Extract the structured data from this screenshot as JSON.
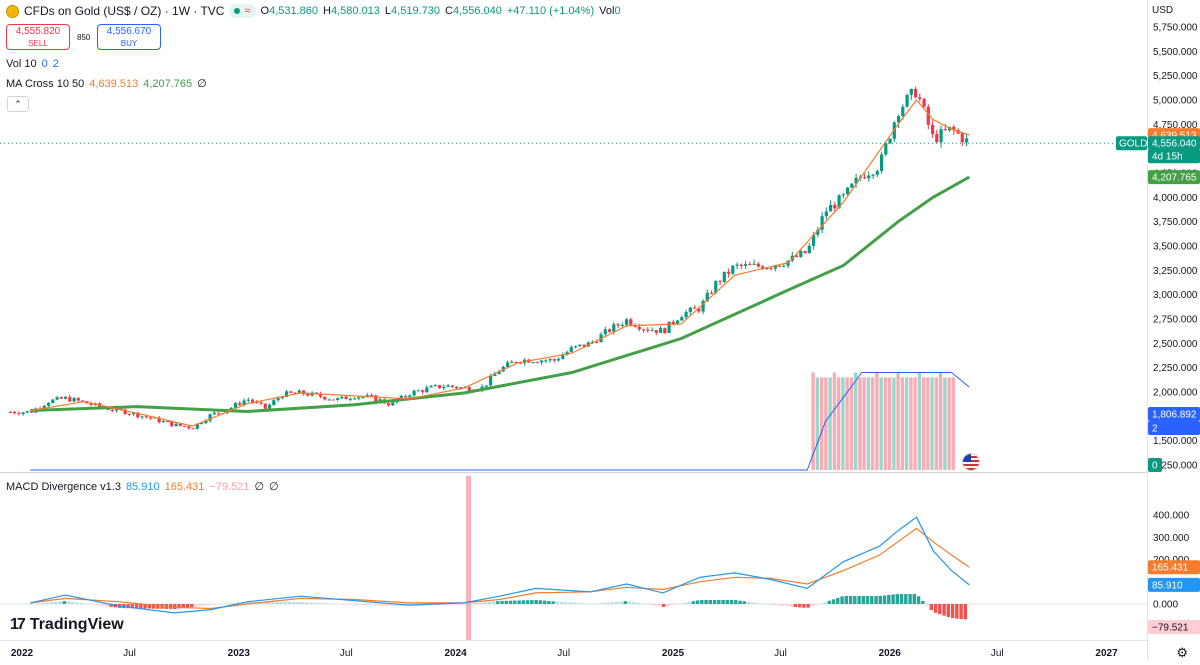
{
  "header": {
    "title": "CFDs on Gold (US$ / OZ) · 1W · TVC",
    "ohlc": {
      "o_label": "O",
      "o_value": "4,531.860",
      "h_label": "H",
      "h_value": "4,580.013",
      "l_label": "L",
      "l_value": "4,519.730",
      "c_label": "C",
      "c_value": "4,556.040",
      "change": "+47.110 (+1.04%)",
      "vol_label": "Vol",
      "vol_value": "0"
    },
    "sell": {
      "price": "4,555.820",
      "label": "SELL"
    },
    "buy": {
      "price": "4,556.670",
      "label": "BUY"
    },
    "spread": "850",
    "collapse_icon": "chevron-up-icon"
  },
  "studies": {
    "volume": {
      "label": "Vol 10",
      "v1": "0",
      "v2": "2"
    },
    "ma_cross": {
      "label": "MA Cross 10 50",
      "v1": "4,639.513",
      "v2": "4,207.765",
      "hidden": "∅"
    },
    "macd": {
      "label": "MACD Divergence v1.3",
      "v1": "85.910",
      "v2": "165.431",
      "v3": "−79.521",
      "n1": "∅",
      "n2": "∅"
    }
  },
  "currency": "USD",
  "brand": "TradingView",
  "colors": {
    "up": "#089981",
    "down": "#f23645",
    "ma_fast": "#f57c2c",
    "ma_slow": "#43a047",
    "macd": "#2196f3",
    "signal": "#f57c2c",
    "volume_line": "#2962ff"
  },
  "chart_data": [
    {
      "type": "candlestick",
      "title": "CFDs on Gold (US$ / OZ) · 1W · TVC",
      "ylim": [
        1250,
        5750
      ],
      "y_ticks": [
        "5,750.000",
        "5,500.000",
        "5,250.000",
        "5,000.000",
        "4,750.000",
        "4,250.000",
        "4,000.000",
        "3,750.000",
        "3,500.000",
        "3,250.000",
        "3,000.000",
        "2,750.000",
        "2,500.000",
        "2,250.000",
        "2,000.000",
        "1,750.000",
        "1,500.000",
        "1,250.000"
      ],
      "x_ticks": [
        "2022",
        "Jul",
        "2023",
        "Jul",
        "2024",
        "Jul",
        "2025",
        "Jul",
        "2026",
        "Jul",
        "2027"
      ],
      "x_range": [
        "2022-01-01",
        "2027-04-01"
      ],
      "last": {
        "label": "GOLD",
        "price": "4,556.040",
        "countdown": "4d 15h"
      },
      "ma_fast_last": "4,639.513",
      "ma_slow_last": "4,207.765",
      "close_series": {
        "x": [
          "2022-01",
          "2022-02",
          "2022-03",
          "2022-04",
          "2022-05",
          "2022-06",
          "2022-07",
          "2022-08",
          "2022-09",
          "2022-10",
          "2022-11",
          "2022-12",
          "2023-01",
          "2023-02",
          "2023-03",
          "2023-04",
          "2023-05",
          "2023-06",
          "2023-07",
          "2023-08",
          "2023-09",
          "2023-10",
          "2023-11",
          "2023-12",
          "2024-01",
          "2024-02",
          "2024-03",
          "2024-04",
          "2024-05",
          "2024-06",
          "2024-07",
          "2024-08",
          "2024-09",
          "2024-10",
          "2024-11",
          "2024-12",
          "2025-01",
          "2025-02",
          "2025-03",
          "2025-04",
          "2025-05",
          "2025-06",
          "2025-07",
          "2025-08",
          "2025-09",
          "2025-10",
          "2025-11",
          "2025-12",
          "2026-01",
          "2026-02",
          "2026-03",
          "2026-04",
          "2026-05"
        ],
        "y": [
          1795,
          1905,
          1935,
          1895,
          1840,
          1810,
          1765,
          1715,
          1660,
          1635,
          1765,
          1825,
          1930,
          1830,
          1975,
          1990,
          1960,
          1920,
          1960,
          1940,
          1870,
          1985,
          2035,
          2065,
          2040,
          2045,
          2230,
          2330,
          2330,
          2325,
          2445,
          2500,
          2635,
          2740,
          2655,
          2625,
          2800,
          2860,
          3120,
          3290,
          3290,
          3300,
          3350,
          3440,
          3860,
          4000,
          4230,
          4330,
          4900,
          5100,
          4600,
          4700,
          4556
        ]
      },
      "ma_fast_series": {
        "x": [
          "2022-01",
          "2022-04",
          "2022-07",
          "2022-10",
          "2023-01",
          "2023-04",
          "2023-07",
          "2023-10",
          "2024-01",
          "2024-04",
          "2024-07",
          "2024-10",
          "2025-01",
          "2025-04",
          "2025-07",
          "2025-10",
          "2026-01",
          "2026-02",
          "2026-03",
          "2026-04",
          "2026-05"
        ],
        "y": [
          1810,
          1900,
          1780,
          1650,
          1880,
          1990,
          1960,
          1930,
          2040,
          2300,
          2400,
          2680,
          2700,
          3200,
          3330,
          3950,
          4750,
          5000,
          4800,
          4700,
          4640
        ]
      },
      "ma_slow_series": {
        "x": [
          "2022-01",
          "2022-07",
          "2023-01",
          "2023-07",
          "2024-01",
          "2024-07",
          "2025-01",
          "2025-07",
          "2025-10",
          "2026-01",
          "2026-03",
          "2026-05"
        ],
        "y": [
          1810,
          1850,
          1800,
          1870,
          1990,
          2200,
          2550,
          3050,
          3300,
          3750,
          4000,
          4208
        ]
      },
      "volume_series": {
        "name": "Vol 10",
        "x": [
          "2022-01",
          "2025-08",
          "2025-09",
          "2025-11",
          "2026-01",
          "2026-03",
          "2026-04",
          "2026-05"
        ],
        "y": [
          0,
          0,
          1,
          2,
          2,
          2,
          2,
          1.7
        ]
      },
      "volume_last": "1,806.892",
      "volume_tag_2": "2",
      "volume_tag_0": "0"
    },
    {
      "type": "line",
      "title": "MACD Divergence v1.3",
      "ylim": [
        -100,
        420
      ],
      "y_ticks": [
        "400.000",
        "300.000",
        "200.000",
        "100.000",
        "0.000"
      ],
      "series": [
        {
          "name": "MACD",
          "x": [
            "2022-01",
            "2022-03",
            "2022-06",
            "2022-09",
            "2022-11",
            "2023-01",
            "2023-04",
            "2023-07",
            "2023-10",
            "2024-01",
            "2024-03",
            "2024-05",
            "2024-08",
            "2024-10",
            "2024-12",
            "2025-02",
            "2025-04",
            "2025-06",
            "2025-08",
            "2025-10",
            "2025-12",
            "2026-01",
            "2026-02",
            "2026-03",
            "2026-04",
            "2026-05"
          ],
          "y": [
            5,
            40,
            -10,
            -40,
            -25,
            10,
            35,
            15,
            -5,
            5,
            35,
            70,
            55,
            90,
            50,
            120,
            140,
            110,
            70,
            190,
            260,
            330,
            390,
            240,
            150,
            86
          ]
        },
        {
          "name": "Signal",
          "x": [
            "2022-01",
            "2022-03",
            "2022-06",
            "2022-09",
            "2022-11",
            "2023-01",
            "2023-04",
            "2023-07",
            "2023-10",
            "2024-01",
            "2024-03",
            "2024-05",
            "2024-08",
            "2024-10",
            "2024-12",
            "2025-02",
            "2025-04",
            "2025-06",
            "2025-08",
            "2025-10",
            "2025-12",
            "2026-01",
            "2026-02",
            "2026-03",
            "2026-04",
            "2026-05"
          ],
          "y": [
            5,
            25,
            10,
            -15,
            -20,
            0,
            25,
            20,
            5,
            5,
            20,
            50,
            55,
            75,
            65,
            100,
            120,
            115,
            90,
            150,
            220,
            280,
            340,
            280,
            220,
            165
          ]
        }
      ],
      "hist_last": "−79.521",
      "macd_last": "85.910",
      "signal_last": "165.431"
    }
  ]
}
